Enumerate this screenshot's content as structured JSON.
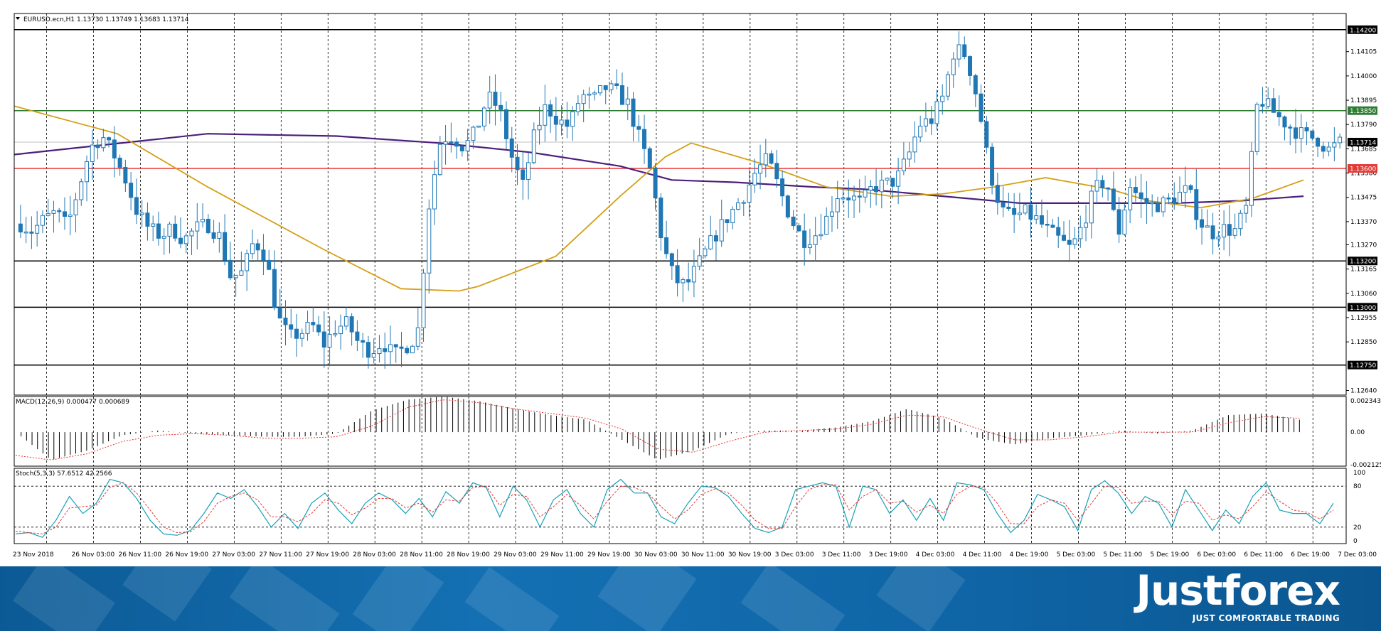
{
  "chart_data": [
    {
      "type": "candlestick",
      "symbol_header": "EURUSD.ecn,H1  1.13730 1.13749 1.13683 1.13714",
      "ylim": [
        1.1262,
        1.1427
      ],
      "y_ticks": [
        "1.14200",
        "1.14105",
        "1.14000",
        "1.13895",
        "1.13850",
        "1.13790",
        "1.13714",
        "1.13685",
        "1.13600",
        "1.13580",
        "1.13475",
        "1.13370",
        "1.13270",
        "1.13200",
        "1.13165",
        "1.13060",
        "1.13000",
        "1.12955",
        "1.12850",
        "1.12750",
        "1.12640"
      ],
      "highlighted_labels": [
        {
          "text": "1.14200",
          "value": 1.142,
          "color": "#000000"
        },
        {
          "text": "1.13850",
          "value": 1.1385,
          "color": "#2e7d32"
        },
        {
          "text": "1.13714",
          "value": 1.13714,
          "color": "#000000"
        },
        {
          "text": "1.13600",
          "value": 1.136,
          "color": "#e53935"
        },
        {
          "text": "1.13200",
          "value": 1.132,
          "color": "#000000"
        },
        {
          "text": "1.13000",
          "value": 1.13,
          "color": "#000000"
        },
        {
          "text": "1.12750",
          "value": 1.1275,
          "color": "#000000"
        }
      ],
      "horizontal_levels": [
        {
          "value": 1.142,
          "color": "#000000"
        },
        {
          "value": 1.1385,
          "color": "#2e7d32"
        },
        {
          "value": 1.136,
          "color": "#e53935"
        },
        {
          "value": 1.132,
          "color": "#000000"
        },
        {
          "value": 1.13,
          "color": "#000000"
        },
        {
          "value": 1.1275,
          "color": "#000000"
        }
      ],
      "current_price": 1.13714,
      "candle_color": "#1f77b4",
      "price_anchors": [
        1.1336,
        1.1333,
        1.1338,
        1.1341,
        1.1335,
        1.1352,
        1.1369,
        1.1374,
        1.1366,
        1.1355,
        1.1341,
        1.1334,
        1.1331,
        1.1334,
        1.1329,
        1.1334,
        1.1336,
        1.1331,
        1.1313,
        1.1315,
        1.1329,
        1.1322,
        1.1296,
        1.1287,
        1.1289,
        1.1292,
        1.1284,
        1.1291,
        1.1293,
        1.1284,
        1.1281,
        1.1285,
        1.1279,
        1.1283,
        1.1288,
        1.1345,
        1.1373,
        1.1374,
        1.1369,
        1.1376,
        1.1391,
        1.1386,
        1.1366,
        1.1352,
        1.1374,
        1.1387,
        1.1381,
        1.1378,
        1.1392,
        1.1389,
        1.1395,
        1.1393,
        1.1388,
        1.1373,
        1.1358,
        1.1327,
        1.1312,
        1.1309,
        1.1318,
        1.1327,
        1.1335,
        1.1342,
        1.1349,
        1.1359,
        1.1364,
        1.1351,
        1.1338,
        1.1329,
        1.1331,
        1.1338,
        1.1349,
        1.1348,
        1.1345,
        1.1352,
        1.1353,
        1.1355,
        1.1365,
        1.1379,
        1.1381,
        1.1391,
        1.1412,
        1.1409,
        1.1389,
        1.1359,
        1.1342,
        1.1339,
        1.1341,
        1.1338,
        1.1333,
        1.1329,
        1.1325,
        1.1336,
        1.1351,
        1.1355,
        1.1331,
        1.1353,
        1.1346,
        1.1344,
        1.1345,
        1.1348,
        1.1351,
        1.1337,
        1.1332,
        1.1334,
        1.1333,
        1.1343,
        1.1391,
        1.1386,
        1.1381,
        1.1377,
        1.1374,
        1.1373,
        1.1368,
        1.1371
      ],
      "ma_fast": [
        [
          0,
          1.1387
        ],
        [
          0.08,
          1.1375
        ],
        [
          0.15,
          1.1352
        ],
        [
          0.24,
          1.1325
        ],
        [
          0.3,
          1.1308
        ],
        [
          0.345,
          1.1307
        ],
        [
          0.36,
          1.1309
        ],
        [
          0.42,
          1.1322
        ],
        [
          0.47,
          1.1348
        ],
        [
          0.505,
          1.1365
        ],
        [
          0.525,
          1.1371
        ],
        [
          0.58,
          1.1362
        ],
        [
          0.63,
          1.1352
        ],
        [
          0.68,
          1.1348
        ],
        [
          0.72,
          1.1349
        ],
        [
          0.76,
          1.1352
        ],
        [
          0.8,
          1.1356
        ],
        [
          0.85,
          1.1351
        ],
        [
          0.88,
          1.1346
        ],
        [
          0.92,
          1.1343
        ],
        [
          0.96,
          1.1347
        ],
        [
          1.0,
          1.1355
        ]
      ],
      "ma_slow": [
        [
          0,
          1.1366
        ],
        [
          0.1,
          1.1372
        ],
        [
          0.15,
          1.1375
        ],
        [
          0.25,
          1.1374
        ],
        [
          0.33,
          1.1371
        ],
        [
          0.4,
          1.1367
        ],
        [
          0.47,
          1.1361
        ],
        [
          0.51,
          1.1355
        ],
        [
          0.56,
          1.1354
        ],
        [
          0.62,
          1.1352
        ],
        [
          0.66,
          1.1351
        ],
        [
          0.72,
          1.1348
        ],
        [
          0.78,
          1.1345
        ],
        [
          0.84,
          1.1345
        ],
        [
          0.9,
          1.1345
        ],
        [
          0.95,
          1.1346
        ],
        [
          1.0,
          1.1348
        ]
      ],
      "ma_colors": {
        "fast": "#d4a017",
        "slow": "#4b1f7a"
      }
    },
    {
      "type": "bar",
      "name": "macd",
      "header": "MACD(12,26,9) 0.000477 0.000689",
      "ylim": [
        -0.0022,
        0.0023
      ],
      "y_ticks": [
        "0.002343",
        "0.00",
        "-0.002125"
      ],
      "histogram_anchors": [
        0,
        -0.0018,
        -0.0012,
        -0.0002,
        0.0001,
        -0.0001,
        -0.0002,
        -0.0003,
        -0.0003,
        -0.0001,
        0.0014,
        0.0021,
        0.0023,
        0.002,
        0.0015,
        0.0011,
        0.0008,
        -0.0005,
        -0.0018,
        -0.0012,
        -0.0001,
        0.0001,
        0.0001,
        0.0003,
        0.0007,
        0.0015,
        0.0009,
        -0.0004,
        -0.0008,
        -0.0004,
        -0.0002,
        0.0001,
        -0.0001,
        0.0001,
        0.0011,
        0.0012,
        0.0008
      ],
      "signal_anchors": [
        -0.0015,
        -0.0018,
        -0.0014,
        -0.0006,
        -0.0002,
        -0.0001,
        -0.0002,
        -0.0004,
        -0.0004,
        -0.0003,
        0.0004,
        0.0016,
        0.0021,
        0.0019,
        0.0015,
        0.0012,
        0.0009,
        0.0002,
        -0.0011,
        -0.0013,
        -0.0006,
        0.0,
        0.0001,
        0.0002,
        0.0005,
        0.0011,
        0.001,
        0.0002,
        -0.0005,
        -0.0005,
        -0.0003,
        0.0,
        0.0,
        0.0,
        0.0006,
        0.001,
        0.0009
      ],
      "colors": {
        "histogram": "#000000",
        "signal": "#e53935"
      }
    },
    {
      "type": "line",
      "name": "stochastic",
      "header": "Stoch(5,3,3) 57.6512 42.2566",
      "ylim": [
        0,
        100
      ],
      "y_ticks": [
        "100",
        "80",
        "20",
        "0"
      ],
      "levels": [
        80,
        20
      ],
      "k_anchors": [
        10,
        12,
        5,
        30,
        65,
        40,
        55,
        90,
        85,
        62,
        30,
        10,
        8,
        15,
        40,
        70,
        62,
        75,
        50,
        20,
        40,
        18,
        55,
        70,
        45,
        25,
        55,
        70,
        60,
        40,
        62,
        35,
        72,
        55,
        85,
        78,
        35,
        80,
        60,
        20,
        60,
        75,
        40,
        20,
        75,
        90,
        70,
        70,
        35,
        25,
        55,
        80,
        78,
        65,
        40,
        18,
        12,
        20,
        75,
        80,
        85,
        80,
        20,
        80,
        75,
        40,
        60,
        30,
        62,
        30,
        85,
        82,
        75,
        40,
        12,
        30,
        68,
        60,
        50,
        15,
        75,
        88,
        70,
        40,
        65,
        55,
        20,
        75,
        45,
        15,
        45,
        25,
        65,
        85,
        45,
        40,
        40,
        25,
        55
      ],
      "d_anchors": [
        14,
        12,
        10,
        20,
        48,
        50,
        52,
        78,
        85,
        70,
        45,
        20,
        12,
        13,
        28,
        55,
        65,
        70,
        60,
        35,
        35,
        28,
        40,
        60,
        55,
        38,
        48,
        62,
        62,
        48,
        55,
        42,
        60,
        58,
        78,
        80,
        52,
        68,
        65,
        35,
        50,
        68,
        52,
        32,
        58,
        80,
        78,
        70,
        50,
        32,
        45,
        68,
        76,
        70,
        52,
        30,
        18,
        18,
        50,
        75,
        82,
        82,
        45,
        65,
        75,
        55,
        58,
        42,
        52,
        40,
        68,
        80,
        78,
        55,
        25,
        25,
        50,
        60,
        55,
        30,
        55,
        80,
        78,
        55,
        58,
        58,
        38,
        58,
        55,
        30,
        38,
        32,
        50,
        72,
        58,
        45,
        42,
        32,
        45
      ],
      "colors": {
        "k": "#17a2b8",
        "d": "#e53935"
      }
    }
  ],
  "x_ticks": [
    "23 Nov 2018",
    "26 Nov 03:00",
    "26 Nov 11:00",
    "26 Nov 19:00",
    "27 Nov 03:00",
    "27 Nov 11:00",
    "27 Nov 19:00",
    "28 Nov 03:00",
    "28 Nov 11:00",
    "28 Nov 19:00",
    "29 Nov 03:00",
    "29 Nov 11:00",
    "29 Nov 19:00",
    "30 Nov 03:00",
    "30 Nov 11:00",
    "30 Nov 19:00",
    "3 Dec 03:00",
    "3 Dec 11:00",
    "3 Dec 19:00",
    "4 Dec 03:00",
    "4 Dec 11:00",
    "4 Dec 19:00",
    "5 Dec 03:00",
    "5 Dec 11:00",
    "5 Dec 19:00",
    "6 Dec 03:00",
    "6 Dec 11:00",
    "6 Dec 19:00",
    "7 Dec 03:00"
  ],
  "brand": {
    "name": "Justforex",
    "tagline": "JUST COMFORTABLE TRADING"
  }
}
